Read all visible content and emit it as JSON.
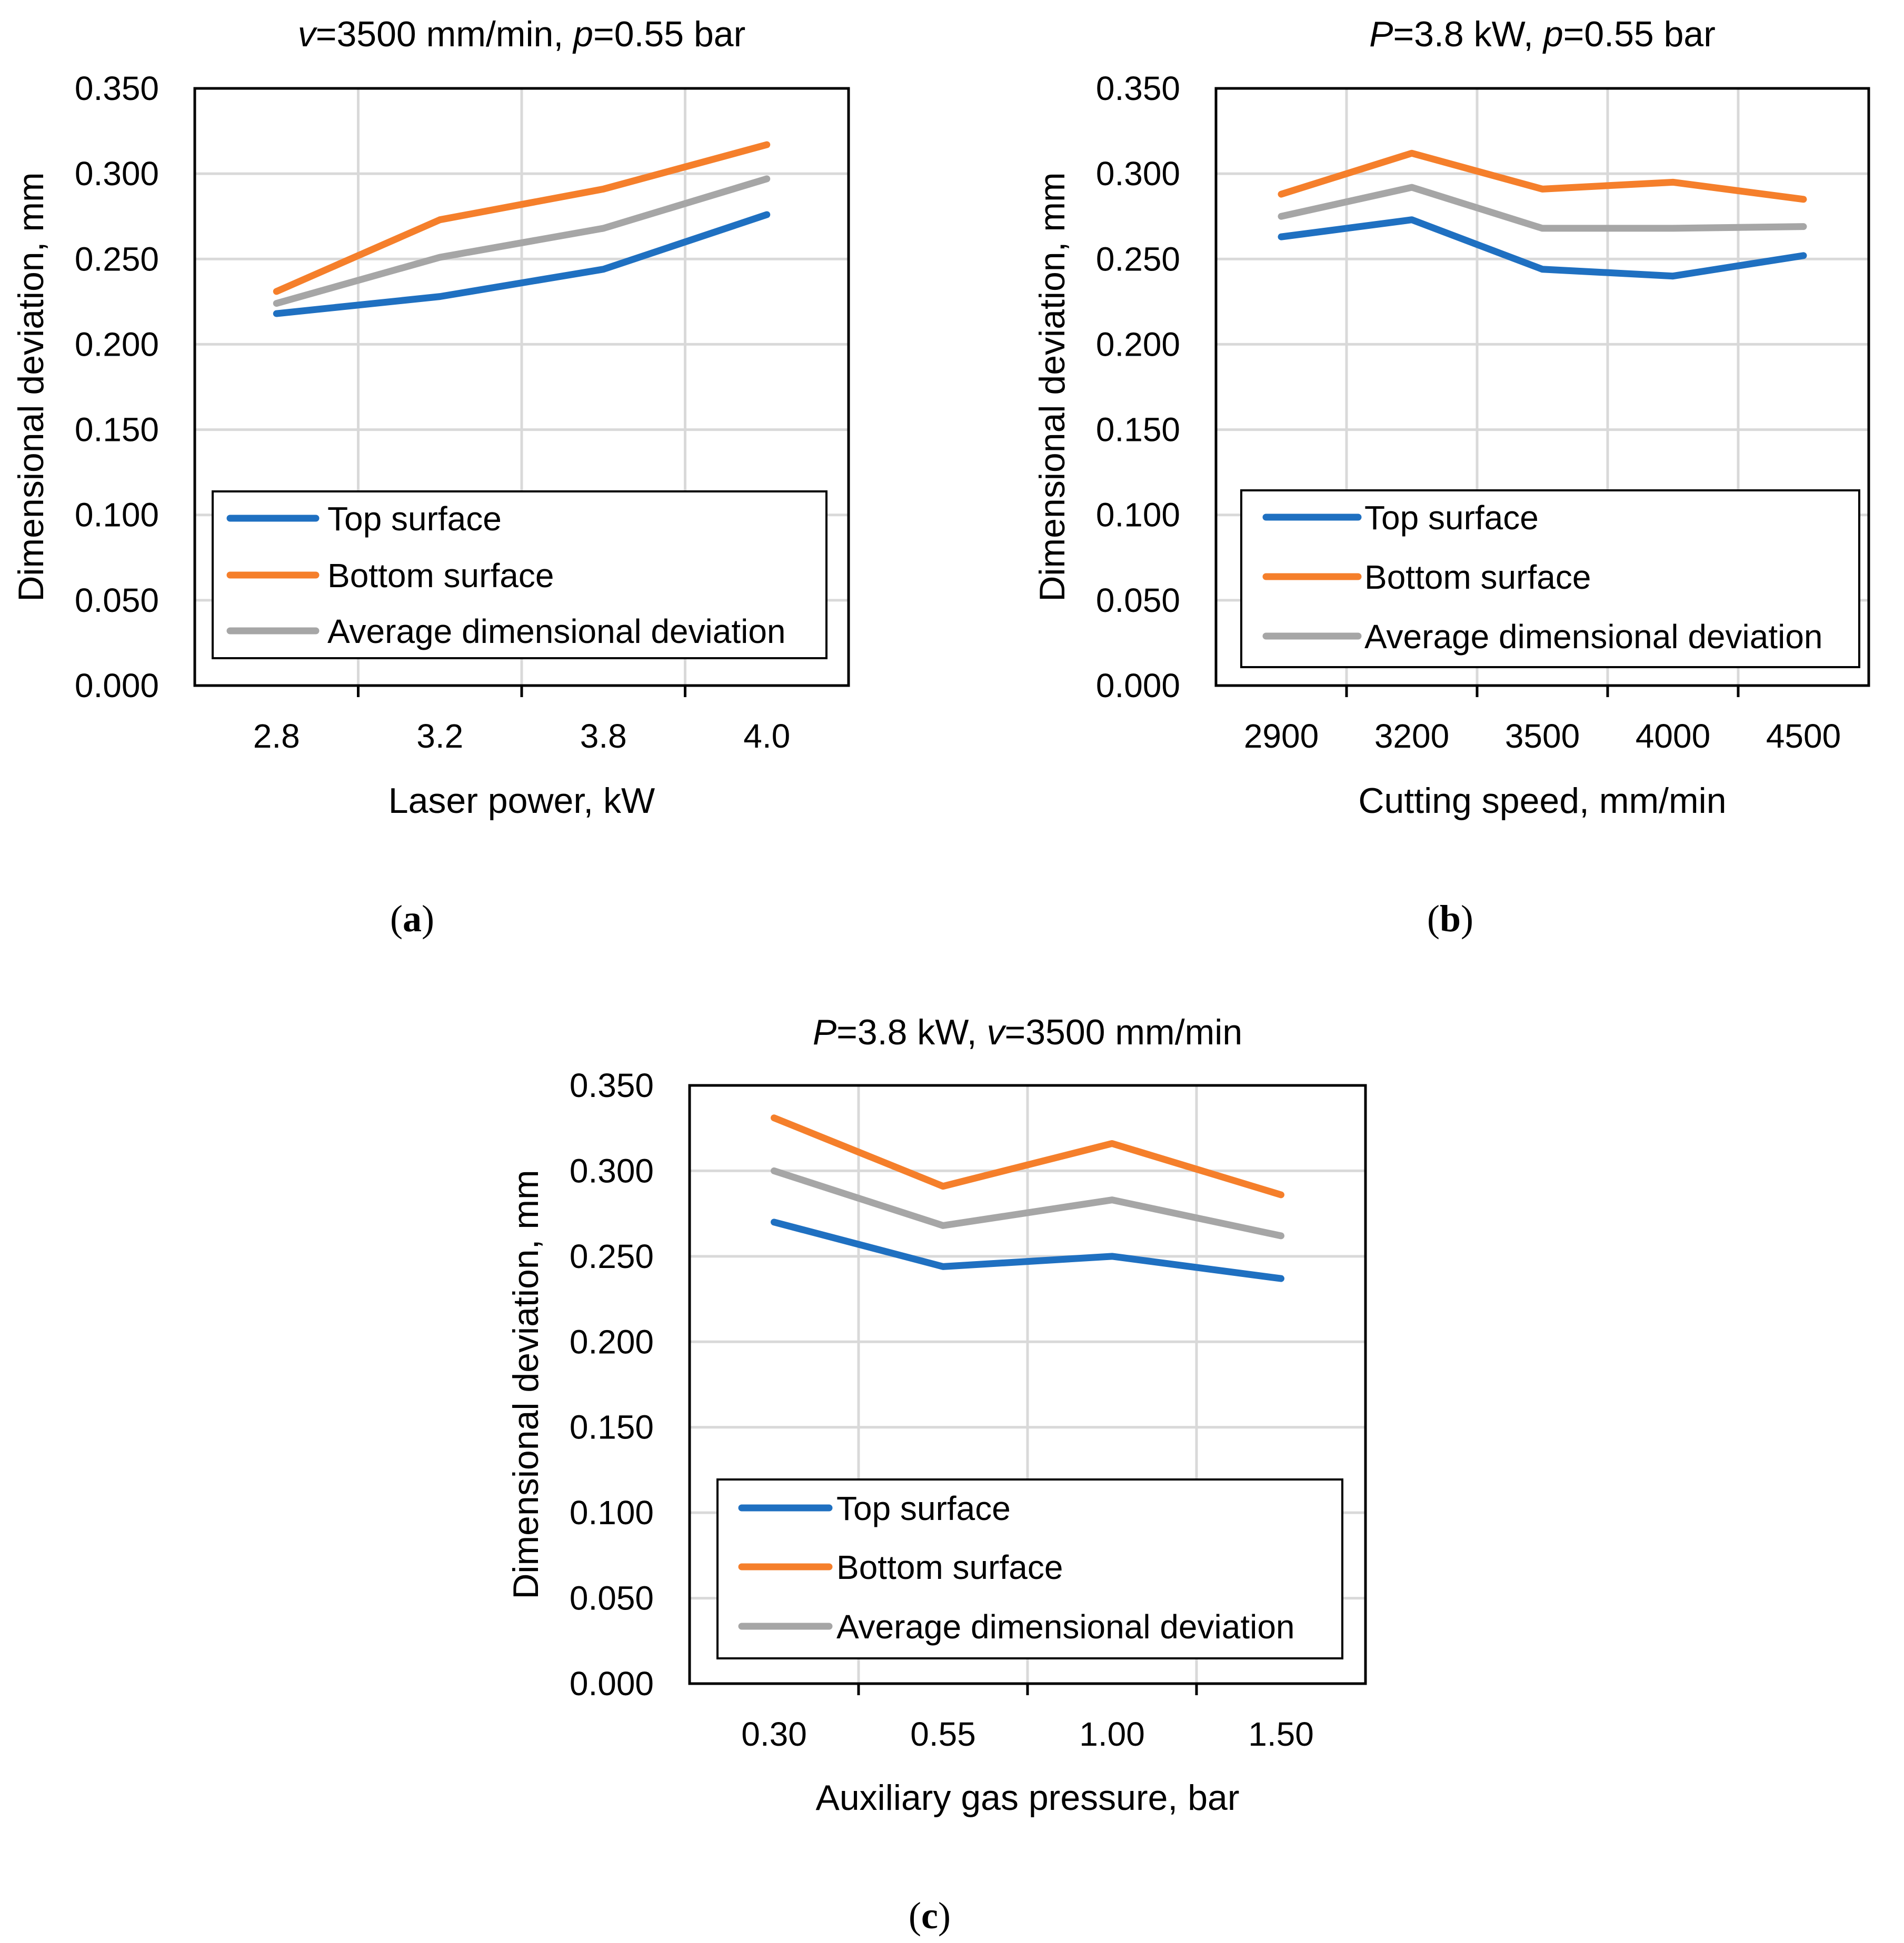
{
  "colors": {
    "top": "#1f70c1",
    "bottom": "#f57f2b",
    "average": "#a6a6a6",
    "grid": "#d9d9d9",
    "axis": "#000000"
  },
  "chart_data": [
    {
      "type": "line",
      "panel_label": "a",
      "title": {
        "v1": "v",
        "t1": "=3500 mm/min, ",
        "v2": "p",
        "t2": "=0.55 bar"
      },
      "xlabel": "Laser power, kW",
      "ylabel": "Dimensional deviation, mm",
      "categories": [
        "2.8",
        "3.2",
        "3.8",
        "4.0"
      ],
      "ylim": [
        0,
        0.35
      ],
      "yticks": [
        "0.000",
        "0.050",
        "0.100",
        "0.150",
        "0.200",
        "0.250",
        "0.300",
        "0.350"
      ],
      "grid": true,
      "legend_position": "bottom-right",
      "series": [
        {
          "name": "Top surface",
          "key": "top",
          "values": [
            0.218,
            0.228,
            0.244,
            0.276
          ]
        },
        {
          "name": "Bottom surface",
          "key": "bottom",
          "values": [
            0.231,
            0.273,
            0.291,
            0.317
          ]
        },
        {
          "name": "Average dimensional deviation",
          "key": "average",
          "values": [
            0.224,
            0.251,
            0.268,
            0.297
          ]
        }
      ]
    },
    {
      "type": "line",
      "panel_label": "b",
      "title": {
        "v1": "P",
        "t1": "=3.8 kW, ",
        "v2": "p",
        "t2": "=0.55 bar"
      },
      "xlabel": "Cutting speed, mm/min",
      "ylabel": "Dimensional deviation, mm",
      "categories": [
        "2900",
        "3200",
        "3500",
        "4000",
        "4500"
      ],
      "ylim": [
        0,
        0.35
      ],
      "yticks": [
        "0.000",
        "0.050",
        "0.100",
        "0.150",
        "0.200",
        "0.250",
        "0.300",
        "0.350"
      ],
      "grid": true,
      "legend_position": "bottom-right",
      "series": [
        {
          "name": "Top surface",
          "key": "top",
          "values": [
            0.263,
            0.273,
            0.244,
            0.24,
            0.252
          ]
        },
        {
          "name": "Bottom surface",
          "key": "bottom",
          "values": [
            0.288,
            0.312,
            0.291,
            0.295,
            0.285
          ]
        },
        {
          "name": "Average dimensional deviation",
          "key": "average",
          "values": [
            0.275,
            0.292,
            0.268,
            0.268,
            0.269
          ]
        }
      ]
    },
    {
      "type": "line",
      "panel_label": "c",
      "title": {
        "v1": "P",
        "t1": "=3.8 kW, ",
        "v2": "v",
        "t2": "=3500 mm/min"
      },
      "xlabel": "Auxiliary gas pressure, bar",
      "ylabel": "Dimensional deviation, mm",
      "categories": [
        "0.30",
        "0.55",
        "1.00",
        "1.50"
      ],
      "ylim": [
        0,
        0.35
      ],
      "yticks": [
        "0.000",
        "0.050",
        "0.100",
        "0.150",
        "0.200",
        "0.250",
        "0.300",
        "0.350"
      ],
      "grid": true,
      "legend_position": "bottom-right",
      "series": [
        {
          "name": "Top surface",
          "key": "top",
          "values": [
            0.27,
            0.244,
            0.25,
            0.237
          ]
        },
        {
          "name": "Bottom surface",
          "key": "bottom",
          "values": [
            0.331,
            0.291,
            0.316,
            0.286
          ]
        },
        {
          "name": "Average dimensional deviation",
          "key": "average",
          "values": [
            0.3,
            0.268,
            0.283,
            0.262
          ]
        }
      ]
    }
  ]
}
